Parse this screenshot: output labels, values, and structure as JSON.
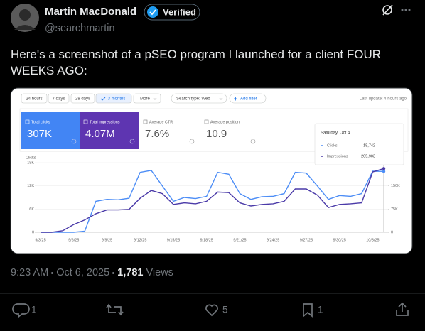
{
  "tweet": {
    "author": "Martin MacDonald",
    "badge": "Verified",
    "handle": "@searchmartin",
    "text": "Here's a screenshot of a pSEO program I launched for a client FOUR WEEKS AGO:",
    "time": "9:23 AM",
    "date": "Oct 6, 2025",
    "views": "1,781",
    "views_label": "Views",
    "replies": 1,
    "likes": 5,
    "bookmarks": 1
  },
  "toolbar": {
    "ranges": [
      "24 hours",
      "7 days",
      "28 days",
      "3 months",
      "More"
    ],
    "search_type": "Search type: Web",
    "filter": "Add filter",
    "last_update": "Last update: 4 hours ago"
  },
  "cards": [
    {
      "label": "Total clicks",
      "value": "307K"
    },
    {
      "label": "Total impressions",
      "value": "4.07M"
    },
    {
      "label": "Average CTR",
      "value": "7.6%"
    },
    {
      "label": "Average position",
      "value": "10.9"
    }
  ],
  "chart_data": {
    "type": "line",
    "x": [
      "9/3/25",
      null,
      null,
      "9/6/25",
      null,
      null,
      "9/9/25",
      null,
      null,
      "9/12/25",
      null,
      null,
      "9/15/25",
      null,
      null,
      "9/18/25",
      null,
      null,
      "9/21/25",
      null,
      null,
      "9/24/25",
      null,
      null,
      "9/27/25",
      null,
      null,
      "9/30/25",
      null,
      null,
      "10/3/25",
      null
    ],
    "series": [
      {
        "name": "Clicks",
        "color": "#4c8df6",
        "values": [
          0,
          0,
          0,
          0,
          300,
          8000,
          8500,
          8400,
          8800,
          15500,
          16000,
          12000,
          8000,
          9000,
          8700,
          9300,
          15500,
          15000,
          10000,
          8500,
          9200,
          9300,
          10000,
          15500,
          15300,
          12000,
          8500,
          9500,
          9300,
          10000,
          15800,
          15742
        ],
        "value_labels": [
          null,
          null,
          null,
          null,
          null,
          null,
          null,
          null,
          null,
          null,
          null,
          null,
          null,
          null,
          null,
          null,
          null,
          null,
          null,
          null,
          null,
          null,
          null,
          null,
          null,
          null,
          null,
          null,
          null,
          null,
          null,
          "15,742"
        ]
      },
      {
        "name": "Impressions",
        "color": "#4a3aa8",
        "axis": "y2",
        "values": [
          0,
          0,
          5000,
          25000,
          40000,
          60000,
          72000,
          72000,
          74000,
          110000,
          135000,
          125000,
          90000,
          95000,
          92000,
          100000,
          130000,
          128000,
          95000,
          85000,
          90000,
          92000,
          100000,
          140000,
          140000,
          120000,
          80000,
          90000,
          92000,
          95000,
          195000,
          205903
        ],
        "value_labels": [
          null,
          null,
          null,
          null,
          null,
          null,
          null,
          null,
          null,
          null,
          null,
          null,
          null,
          null,
          null,
          null,
          null,
          null,
          null,
          null,
          null,
          null,
          null,
          null,
          null,
          null,
          null,
          null,
          null,
          null,
          null,
          "205,903"
        ]
      }
    ],
    "ylabel": "Clicks",
    "y2label": "Impressions",
    "ylim": [
      0,
      18000
    ],
    "yticks": [
      0,
      {
        "value": 6000,
        "label": "6K"
      },
      {
        "value": 12000,
        "label": "12K"
      },
      {
        "value": 18000,
        "label": "18K"
      }
    ],
    "y2lim": [
      0,
      225000
    ],
    "y2ticks": [
      0,
      {
        "value": 75000,
        "label": "75K"
      },
      {
        "value": 150000,
        "label": "150K"
      },
      {
        "value": 225000,
        "label": "225K"
      }
    ],
    "grid": true,
    "tooltip_title": "Saturday, Oct 4"
  }
}
